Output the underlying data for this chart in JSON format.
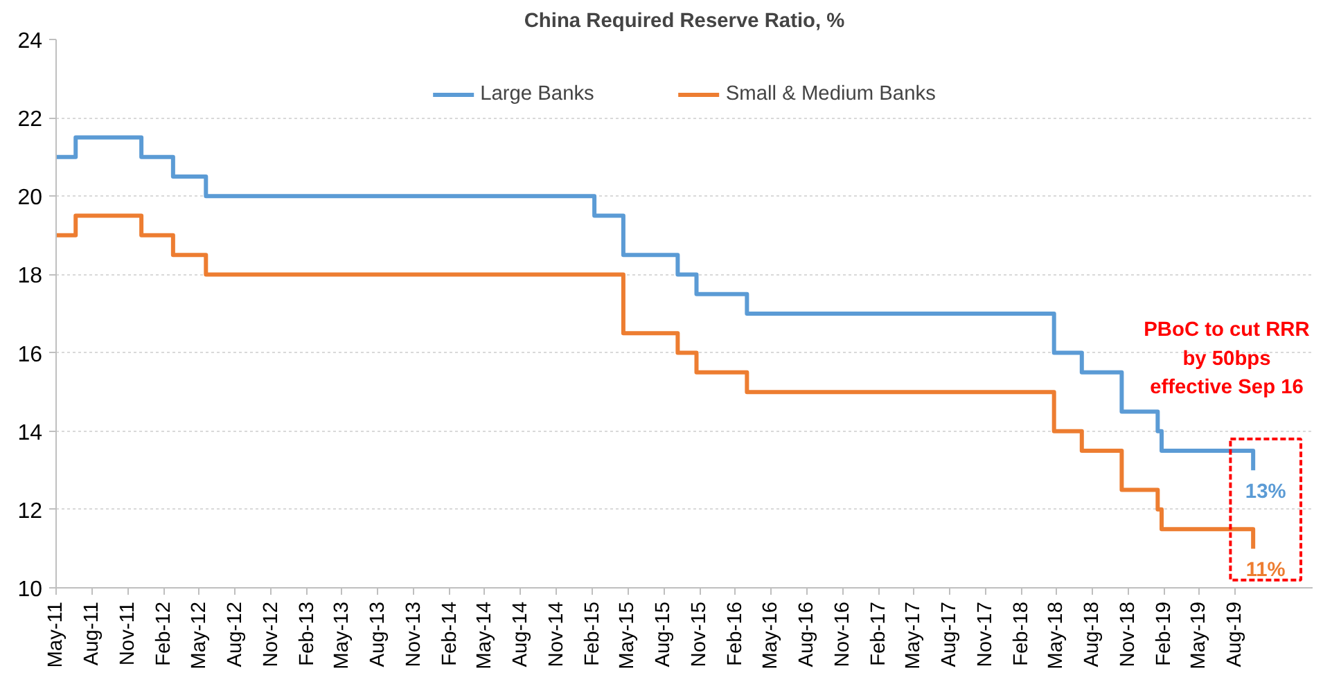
{
  "chart_data": {
    "type": "step",
    "title": "China Required Reserve Ratio, %",
    "xlim": [
      "2011-05-01",
      "2020-02-15"
    ],
    "xticks": [
      {
        "value": "2011-05-01",
        "label": "May-11"
      },
      {
        "value": "2011-08-01",
        "label": "Aug-11"
      },
      {
        "value": "2011-11-01",
        "label": "Nov-11"
      },
      {
        "value": "2012-02-01",
        "label": "Feb-12"
      },
      {
        "value": "2012-05-01",
        "label": "May-12"
      },
      {
        "value": "2012-08-01",
        "label": "Aug-12"
      },
      {
        "value": "2012-11-01",
        "label": "Nov-12"
      },
      {
        "value": "2013-02-01",
        "label": "Feb-13"
      },
      {
        "value": "2013-05-01",
        "label": "May-13"
      },
      {
        "value": "2013-08-01",
        "label": "Aug-13"
      },
      {
        "value": "2013-11-01",
        "label": "Nov-13"
      },
      {
        "value": "2014-02-01",
        "label": "Feb-14"
      },
      {
        "value": "2014-05-01",
        "label": "May-14"
      },
      {
        "value": "2014-08-01",
        "label": "Aug-14"
      },
      {
        "value": "2014-11-01",
        "label": "Nov-14"
      },
      {
        "value": "2015-02-01",
        "label": "Feb-15"
      },
      {
        "value": "2015-05-01",
        "label": "May-15"
      },
      {
        "value": "2015-08-01",
        "label": "Aug-15"
      },
      {
        "value": "2015-11-01",
        "label": "Nov-15"
      },
      {
        "value": "2016-02-01",
        "label": "Feb-16"
      },
      {
        "value": "2016-05-01",
        "label": "May-16"
      },
      {
        "value": "2016-08-01",
        "label": "Aug-16"
      },
      {
        "value": "2016-11-01",
        "label": "Nov-16"
      },
      {
        "value": "2017-02-01",
        "label": "Feb-17"
      },
      {
        "value": "2017-05-01",
        "label": "May-17"
      },
      {
        "value": "2017-08-01",
        "label": "Aug-17"
      },
      {
        "value": "2017-11-01",
        "label": "Nov-17"
      },
      {
        "value": "2018-02-01",
        "label": "Feb-18"
      },
      {
        "value": "2018-05-01",
        "label": "May-18"
      },
      {
        "value": "2018-08-01",
        "label": "Aug-18"
      },
      {
        "value": "2018-11-01",
        "label": "Nov-18"
      },
      {
        "value": "2019-02-01",
        "label": "Feb-19"
      },
      {
        "value": "2019-05-01",
        "label": "May-19"
      },
      {
        "value": "2019-08-01",
        "label": "Aug-19"
      }
    ],
    "ylim": [
      10,
      24
    ],
    "yticks": [
      10,
      12,
      14,
      16,
      18,
      20,
      22,
      24
    ],
    "grid": "y",
    "legend": "top",
    "line_style": "solid",
    "marker": "none",
    "series": [
      {
        "name": "Large Banks",
        "color": "#5b9bd5",
        "x": [
          "2011-05-01",
          "2011-06-20",
          "2011-12-05",
          "2012-02-24",
          "2012-05-18",
          "2015-02-05",
          "2015-04-20",
          "2015-09-06",
          "2015-10-24",
          "2016-03-01",
          "2018-04-25",
          "2018-07-05",
          "2018-10-15",
          "2019-01-15",
          "2019-01-25",
          "2019-09-16"
        ],
        "values": [
          21,
          21.5,
          21,
          20.5,
          20,
          19.5,
          18.5,
          18,
          17.5,
          17,
          16,
          15.5,
          14.5,
          14,
          13.5,
          13
        ]
      },
      {
        "name": "Small & Medium Banks",
        "color": "#ed7d31",
        "x": [
          "2011-05-01",
          "2011-06-20",
          "2011-12-05",
          "2012-02-24",
          "2012-05-18",
          "2015-04-20",
          "2015-09-06",
          "2015-10-24",
          "2016-03-01",
          "2018-04-25",
          "2018-07-05",
          "2018-10-15",
          "2019-01-15",
          "2019-01-25",
          "2019-09-16"
        ],
        "values": [
          19,
          19.5,
          19,
          18.5,
          18,
          16.5,
          16,
          15.5,
          15,
          14,
          13.5,
          12.5,
          12,
          11.5,
          11
        ]
      }
    ],
    "annotations": [
      "PBoC to cut RRR by 50bps effective Sep 16",
      {
        "text": "13%",
        "x": "2019-09-16",
        "y": 13
      },
      {
        "text": "11%",
        "x": "2019-09-16",
        "y": 11
      }
    ]
  }
}
